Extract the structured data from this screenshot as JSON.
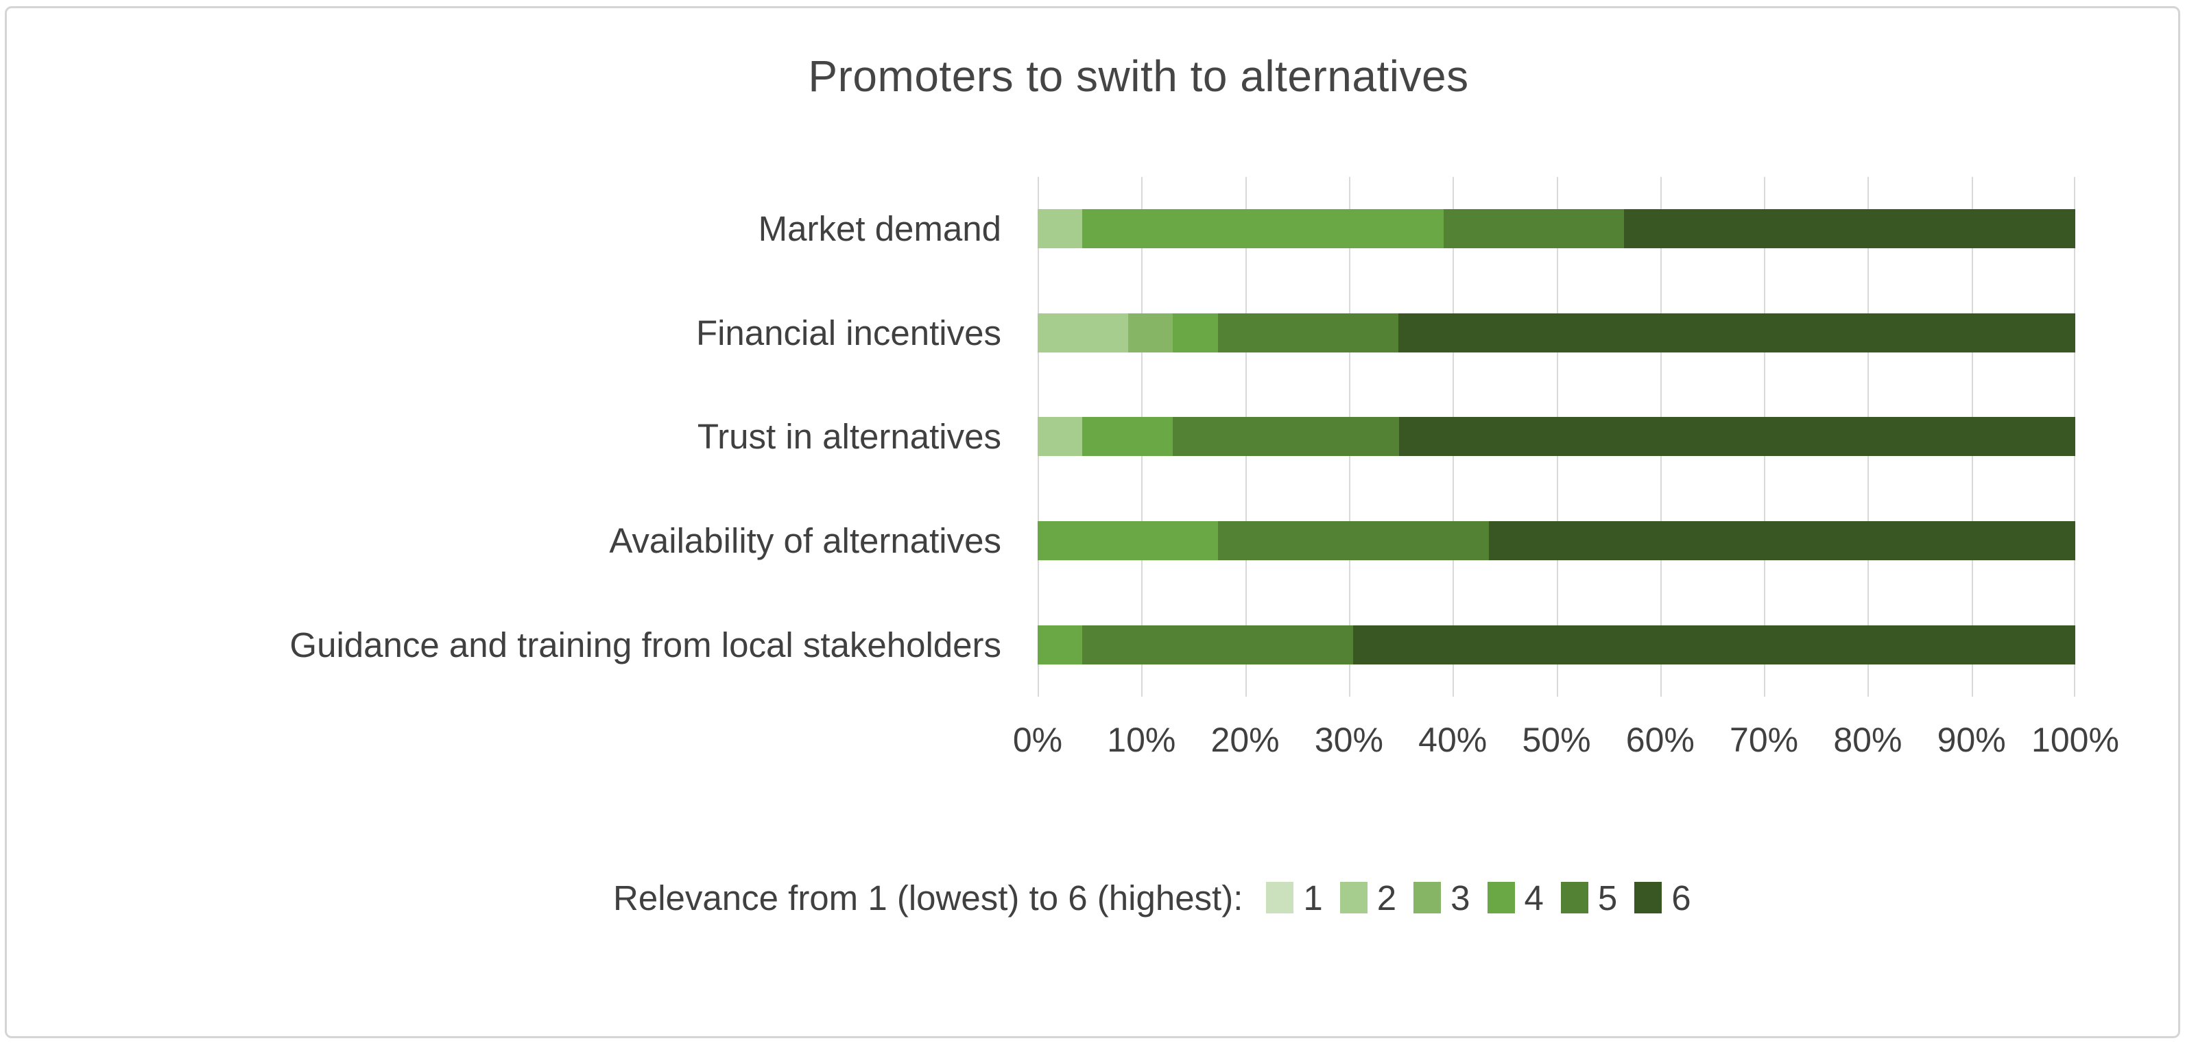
{
  "frame": {
    "background": "#ffffff",
    "border_color": "#d5d5d5",
    "gridline_color": "#d9d9d9",
    "text_color": "#404040"
  },
  "chart_data": {
    "type": "bar",
    "orientation": "horizontal",
    "stacked": true,
    "stack_total": 100,
    "title": "Promoters to swith to alternatives",
    "categories": [
      "Market demand",
      "Financial incentives",
      "Trust in alternatives",
      "Availability of alternatives",
      "Guidance and training from local stakeholders"
    ],
    "series": [
      {
        "name": "1",
        "color": "#CBE0BC",
        "values": [
          0,
          0,
          0,
          0,
          0
        ]
      },
      {
        "name": "2",
        "color": "#A6CC8E",
        "values": [
          4.3,
          8.7,
          4.3,
          0,
          0
        ]
      },
      {
        "name": "3",
        "color": "#87B566",
        "values": [
          0,
          4.3,
          0,
          0,
          0
        ]
      },
      {
        "name": "4",
        "color": "#6AA845",
        "values": [
          34.8,
          4.4,
          8.7,
          17.4,
          4.3
        ]
      },
      {
        "name": "5",
        "color": "#548235",
        "values": [
          17.4,
          17.4,
          21.8,
          26.1,
          26.1
        ]
      },
      {
        "name": "6",
        "color": "#385723",
        "values": [
          43.5,
          65.2,
          65.2,
          56.5,
          69.6
        ]
      }
    ],
    "x_ticks": [
      "0%",
      "10%",
      "20%",
      "30%",
      "40%",
      "50%",
      "60%",
      "70%",
      "80%",
      "90%",
      "100%"
    ],
    "xlim": [
      0,
      100
    ],
    "grid": "vertical-10pct",
    "legend": {
      "position": "bottom",
      "caption": "Relevance from 1 (lowest) to 6 (highest):",
      "entries": [
        "1",
        "2",
        "3",
        "4",
        "5",
        "6"
      ]
    }
  }
}
